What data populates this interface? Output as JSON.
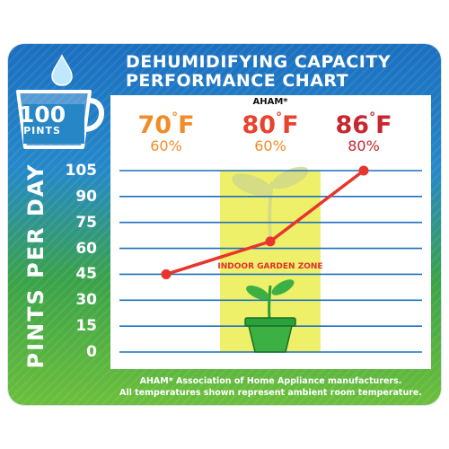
{
  "colors": {
    "orange": "#f28c28",
    "red": "#e8432c",
    "darkred": "#c8262e",
    "grey": "#8a8a8a",
    "gridline": "#1d6fbf",
    "line": "#e8352c",
    "zone": "#eef06a"
  },
  "icons": {
    "badge": "measuring-cup-icon",
    "drop": "water-drop-icon",
    "plant": "plant-pot-icon"
  },
  "badge": {
    "number": "100",
    "unit": "PINTS"
  },
  "footnote": {
    "line1": "AHAM* Association of Home Appliance manufacturers.",
    "line2": "All temperatures shown represent ambient room temperature."
  },
  "chart_data": {
    "type": "line",
    "title_line1": "DEHUMIDIFYING CAPACITY",
    "title_line2": "PERFORMANCE CHART",
    "ylabel": "PINTS PER DAY",
    "ylim": [
      0,
      105
    ],
    "yticks": [
      "105",
      "90",
      "75",
      "60",
      "45",
      "30",
      "15",
      "0"
    ],
    "grid": true,
    "x_labels": [
      {
        "temp": "70",
        "unit": "F",
        "humidity": "60%",
        "note": "",
        "color": "orange"
      },
      {
        "temp": "80",
        "unit": "F",
        "humidity": "60%",
        "note": "AHAM*",
        "color": "red"
      },
      {
        "temp": "86",
        "unit": "F",
        "humidity": "80%",
        "note": "",
        "color": "darkred"
      }
    ],
    "series": [
      {
        "values": [
          45,
          64,
          105
        ]
      }
    ],
    "annotations": {
      "zone_label": "INDOOR GARDEN ZONE"
    }
  }
}
